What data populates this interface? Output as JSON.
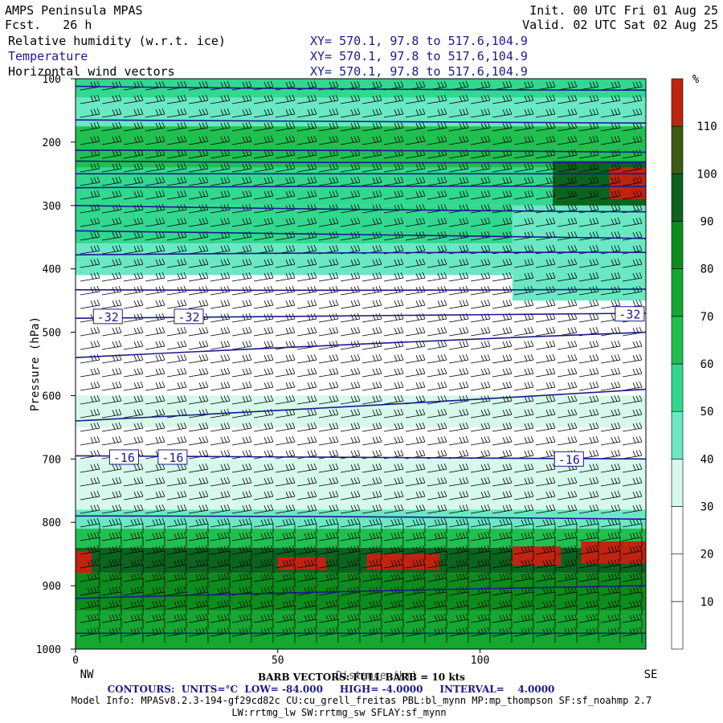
{
  "header": {
    "model": "AMPS Peninsula MPAS",
    "fcst": "Fcst.   26 h",
    "init": "Init. 00 UTC Fri 01 Aug 25",
    "valid": "Valid. 02 UTC Sat 02 Aug 25",
    "field1": "Relative humidity (w.r.t. ice)",
    "field2": "Temperature",
    "field3": "Horizontal wind vectors",
    "xy1": "XY= 570.1, 97.8 to 517.6,104.9",
    "xy2": "XY= 570.1, 97.8 to 517.6,104.9",
    "xy3": "XY= 570.1, 97.8 to 517.6,104.9"
  },
  "footer": {
    "barb": "BARB VECTORS: FULL BARB = 10 kts",
    "contours": "CONTOURS:  UNITS=°C  LOW= -84.000     HIGH= -4.0000     INTERVAL=    4.0000",
    "model_info1": "Model Info: MPASv8.2.3-194-gf29cd82c CU:cu_grell_freitas PBL:bl_mynn MP:mp_thompson SF:sf_noahmp 2.7",
    "model_info2": "LW:rrtmg_lw SW:rrtmg_sw SFLAY:sf_mynn"
  },
  "chart_data": {
    "type": "heatmap",
    "title": "Relative humidity (w.r.t. ice)",
    "xlabel": "Distance (km)",
    "ylabel": "Pressure (hPa)",
    "xlim": [
      0,
      141
    ],
    "ylim": [
      1000,
      100
    ],
    "x_ticks": [
      0,
      50,
      100
    ],
    "y_ticks": [
      100,
      200,
      300,
      400,
      500,
      600,
      700,
      800,
      900,
      1000
    ],
    "x_end_labels": {
      "left": "NW",
      "right": "SE"
    },
    "colorbar": {
      "unit": "%",
      "levels": [
        10,
        20,
        30,
        40,
        50,
        60,
        70,
        80,
        90,
        100,
        110
      ],
      "colors": [
        "#ffffff",
        "#ffffff",
        "#ffffff",
        "#d6f9ec",
        "#6ae8c4",
        "#32d890",
        "#20c050",
        "#14a830",
        "#0c8c1c",
        "#0a6420",
        "#3c5a10",
        "#c02410"
      ]
    },
    "rh_layers": [
      {
        "p_top": 100,
        "p_bot": 130,
        "rh": 55
      },
      {
        "p_top": 130,
        "p_bot": 175,
        "rh": 45
      },
      {
        "p_top": 175,
        "p_bot": 240,
        "rh": 65
      },
      {
        "p_top": 240,
        "p_bot": 300,
        "rh": 50
      },
      {
        "p_top": 300,
        "p_bot": 360,
        "rh": 55
      },
      {
        "p_top": 360,
        "p_bot": 410,
        "rh": 42
      },
      {
        "p_top": 410,
        "p_bot": 455,
        "rh": 25
      },
      {
        "p_top": 455,
        "p_bot": 600,
        "rh": 15
      },
      {
        "p_top": 600,
        "p_bot": 650,
        "rh": 35
      },
      {
        "p_top": 650,
        "p_bot": 700,
        "rh": 15
      },
      {
        "p_top": 700,
        "p_bot": 780,
        "rh": 32
      },
      {
        "p_top": 780,
        "p_bot": 810,
        "rh": 45
      },
      {
        "p_top": 810,
        "p_bot": 840,
        "rh": 65
      },
      {
        "p_top": 840,
        "p_bot": 880,
        "rh": 95
      },
      {
        "p_top": 880,
        "p_bot": 940,
        "rh": 80
      },
      {
        "p_top": 940,
        "p_bot": 1000,
        "rh": 70
      }
    ],
    "rh_patches": [
      {
        "x0": 118,
        "x1": 141,
        "p_top": 230,
        "p_bot": 330,
        "rh": 95
      },
      {
        "x0": 132,
        "x1": 141,
        "p_top": 240,
        "p_bot": 290,
        "rh": 112
      },
      {
        "x0": 108,
        "x1": 141,
        "p_top": 300,
        "p_bot": 450,
        "rh": 48
      },
      {
        "x0": 0,
        "x1": 4,
        "p_top": 845,
        "p_bot": 880,
        "rh": 112
      },
      {
        "x0": 50,
        "x1": 62,
        "p_top": 855,
        "p_bot": 875,
        "rh": 112
      },
      {
        "x0": 72,
        "x1": 90,
        "p_top": 850,
        "p_bot": 875,
        "rh": 112
      },
      {
        "x0": 108,
        "x1": 120,
        "p_top": 838,
        "p_bot": 868,
        "rh": 112
      },
      {
        "x0": 125,
        "x1": 141,
        "p_top": 830,
        "p_bot": 865,
        "rh": 112
      }
    ],
    "temperature_contours": [
      {
        "p_left": 790,
        "p_right": 795
      },
      {
        "p_left": 695,
        "p_right": 700,
        "label": "-16"
      },
      {
        "p_left": 640,
        "p_right": 590
      },
      {
        "p_left": 540,
        "p_right": 500
      },
      {
        "p_left": 478,
        "p_right": 470,
        "label": "-32"
      },
      {
        "p_left": 433,
        "p_right": 432
      },
      {
        "p_left": 378,
        "p_right": 374
      },
      {
        "p_left": 340,
        "p_right": 352
      },
      {
        "p_left": 300,
        "p_right": 310
      },
      {
        "p_left": 272,
        "p_right": 270
      },
      {
        "p_left": 250,
        "p_right": 250
      },
      {
        "p_left": 230,
        "p_right": 232
      },
      {
        "p_left": 213,
        "p_right": 216
      },
      {
        "p_left": 165,
        "p_right": 170
      },
      {
        "p_left": 112,
        "p_right": 118
      },
      {
        "p_left": 920,
        "p_right": 900
      },
      {
        "p_left": 975,
        "p_right": 975
      }
    ],
    "contour_labels": [
      {
        "x": 8,
        "p": 475,
        "text": "-32"
      },
      {
        "x": 28,
        "p": 475,
        "text": "-32"
      },
      {
        "x": 137,
        "p": 471,
        "text": "-32"
      },
      {
        "x": 12,
        "p": 697,
        "text": "-16"
      },
      {
        "x": 24,
        "p": 697,
        "text": "-16"
      },
      {
        "x": 122,
        "p": 700,
        "text": "-16"
      }
    ]
  }
}
